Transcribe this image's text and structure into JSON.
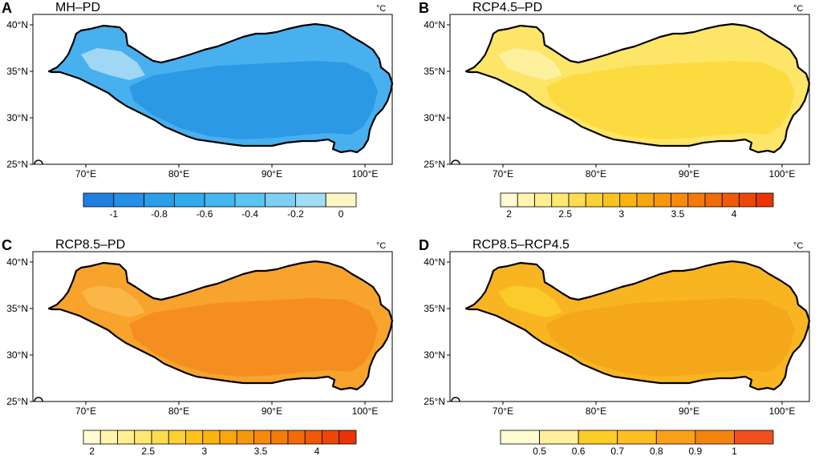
{
  "figure": {
    "lat_labels": [
      "40°N",
      "35°N",
      "30°N",
      "25°N"
    ],
    "lon_labels": [
      "70°E",
      "80°E",
      "90°E",
      "100°E"
    ],
    "unit": "°C"
  },
  "panels": [
    {
      "letter": "A",
      "title": "MH–PD",
      "region_fill": "#48b0ee",
      "inner_fill": "#2795e2",
      "highlight_fill": "#a8dcf4",
      "colorbar": {
        "colors": [
          "#1e7fe0",
          "#2590e6",
          "#2a9ee9",
          "#30abeb",
          "#42b8ee",
          "#5cc4f1",
          "#7dcff3",
          "#a2ddf6",
          "#fbf7c4"
        ],
        "labels": [
          "-1",
          "-0.8",
          "-0.6",
          "-0.4",
          "-0.2",
          "0"
        ]
      }
    },
    {
      "letter": "B",
      "title": "RCP4.5–PD",
      "region_fill": "#fde567",
      "inner_fill": "#fcd93a",
      "highlight_fill": "#fef2a4",
      "colorbar": {
        "colors": [
          "#fffbd2",
          "#fff5ae",
          "#ffef90",
          "#ffe772",
          "#fedc52",
          "#fdd035",
          "#fcc21e",
          "#fbb40f",
          "#f9a60d",
          "#f7980c",
          "#f58a0b",
          "#f37b0a",
          "#f16c09",
          "#ee5a08",
          "#ec4707",
          "#e93406"
        ],
        "labels": [
          "2",
          "2.5",
          "3",
          "3.5",
          "4"
        ]
      }
    },
    {
      "letter": "C",
      "title": "RCP8.5–PD",
      "region_fill": "#f7a32c",
      "inner_fill": "#f48a1f",
      "highlight_fill": "#f9b84a",
      "colorbar": {
        "colors": [
          "#fffbd2",
          "#fff5ae",
          "#ffef90",
          "#ffe772",
          "#fedc52",
          "#fdd035",
          "#fcc21e",
          "#fbb40f",
          "#f9a60d",
          "#f7980c",
          "#f58a0b",
          "#f37b0a",
          "#f16c09",
          "#ee5a08",
          "#ec4707",
          "#e93406"
        ],
        "labels": [
          "2",
          "2.5",
          "3",
          "3.5",
          "4"
        ]
      }
    },
    {
      "letter": "D",
      "title": "RCP8.5–RCP4.5",
      "region_fill": "#f8b521",
      "inner_fill": "#f4a419",
      "highlight_fill": "#fbcd2e",
      "colorbar": {
        "colors": [
          "#fffbd2",
          "#fff0a0",
          "#fccc28",
          "#fbbf25",
          "#f9a01a",
          "#f38412",
          "#ef4f1c"
        ],
        "labels": [
          "0.5",
          "0.6",
          "0.7",
          "0.8",
          "0.9",
          "1"
        ]
      }
    }
  ]
}
